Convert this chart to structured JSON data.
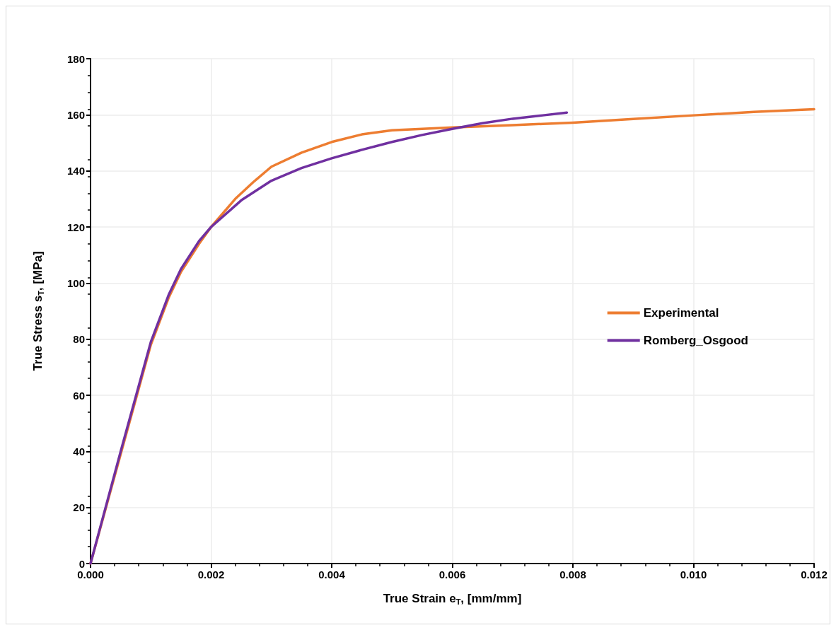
{
  "chart_data": {
    "type": "line",
    "xlabel": "True Strain e$_{T}$, [mm/mm]",
    "ylabel": "True Stress s$_{T}$, [MPa]",
    "series": [
      {
        "name": "Experimental",
        "color": "#ed7d31",
        "x": [
          0,
          0.0005,
          0.001,
          0.0013,
          0.0015,
          0.0018,
          0.002,
          0.0024,
          0.0027,
          0.003,
          0.0035,
          0.004,
          0.0045,
          0.005,
          0.0055,
          0.006,
          0.007,
          0.008,
          0.009,
          0.01,
          0.011,
          0.012
        ],
        "values": [
          0,
          39,
          78,
          95,
          104,
          114,
          120,
          130,
          136,
          141.5,
          146.5,
          150.3,
          153,
          154.5,
          155,
          155.5,
          156.3,
          157.2,
          158.5,
          159.8,
          161,
          162
        ]
      },
      {
        "name": "Romberg_Osgood",
        "color": "#7030a0",
        "x": [
          0,
          0.0005,
          0.001,
          0.0013,
          0.0015,
          0.0018,
          0.002,
          0.0025,
          0.003,
          0.0035,
          0.004,
          0.0045,
          0.005,
          0.0055,
          0.006,
          0.0065,
          0.007,
          0.0075,
          0.0079
        ],
        "values": [
          0,
          40,
          79,
          96,
          105,
          115,
          120,
          129.5,
          136.5,
          141,
          144.5,
          147.5,
          150.3,
          152.8,
          155,
          157,
          158.6,
          159.8,
          160.8
        ]
      }
    ],
    "xlim": [
      0,
      0.012
    ],
    "xticks": [
      {
        "value": 0,
        "label": "0.000"
      },
      {
        "value": 0.002,
        "label": "0.002"
      },
      {
        "value": 0.004,
        "label": "0.004"
      },
      {
        "value": 0.006,
        "label": "0.006"
      },
      {
        "value": 0.008,
        "label": "0.008"
      },
      {
        "value": 0.01,
        "label": "0.010"
      },
      {
        "value": 0.012,
        "label": "0.012"
      }
    ],
    "ylim": [
      0,
      180
    ],
    "yticks": [
      0,
      20,
      40,
      60,
      80,
      100,
      120,
      140,
      160,
      180
    ],
    "grid": true,
    "legend": "right",
    "marker": "none",
    "line_style": "solid"
  }
}
